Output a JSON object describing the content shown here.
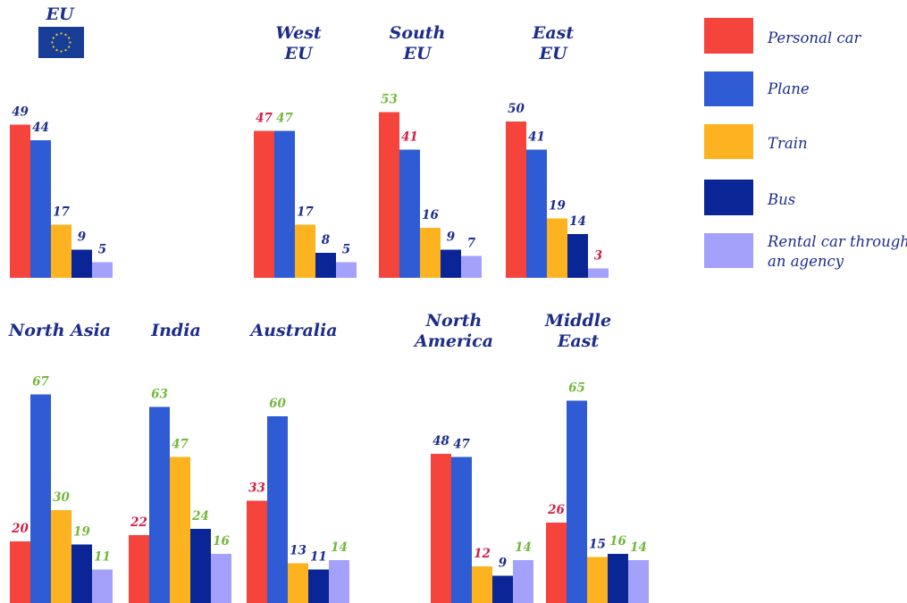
{
  "chart_data": {
    "type": "bar",
    "categories": [
      "Personal car",
      "Plane",
      "Train",
      "Bus",
      "Rental car through an agency"
    ],
    "legend": {
      "placement": "right",
      "items": [
        {
          "lines": [
            "Personal car"
          ],
          "color": "#f5443c"
        },
        {
          "lines": [
            "Plane"
          ],
          "color": "#2f5bd4"
        },
        {
          "lines": [
            "Train"
          ],
          "color": "#fcb31f"
        },
        {
          "lines": [
            "Bus"
          ],
          "color": "#0a2596"
        },
        {
          "lines": [
            "Rental car through",
            "an agency"
          ],
          "color": "#a3a1fa"
        }
      ]
    },
    "colors": {
      "title": "#1c2c8c",
      "label_default": "#1c2c8c",
      "label_green": "#72b83c",
      "label_red": "#d01e46",
      "eu_flag_blue": "#173d96",
      "eu_flag_stars": "#ffd21e"
    },
    "panels": [
      {
        "title": [
          "EU"
        ],
        "values": [
          49,
          44,
          17,
          9,
          5
        ],
        "label_colors": [
          "default",
          "default",
          "default",
          "default",
          "default"
        ]
      },
      {
        "title": [
          "West",
          "EU"
        ],
        "values": [
          47,
          47,
          17,
          8,
          5
        ],
        "label_colors": [
          "red",
          "green",
          "default",
          "default",
          "default"
        ]
      },
      {
        "title": [
          "South",
          "EU"
        ],
        "values": [
          53,
          41,
          16,
          9,
          7
        ],
        "label_colors": [
          "green",
          "red",
          "default",
          "default",
          "default"
        ]
      },
      {
        "title": [
          "East",
          "EU"
        ],
        "values": [
          50,
          41,
          19,
          14,
          3
        ],
        "label_colors": [
          "default",
          "default",
          "default",
          "default",
          "red"
        ]
      },
      {
        "title": [
          "North Asia"
        ],
        "values": [
          20,
          67,
          30,
          19,
          11
        ],
        "label_colors": [
          "red",
          "green",
          "green",
          "green",
          "green"
        ]
      },
      {
        "title": [
          "India"
        ],
        "values": [
          22,
          63,
          47,
          24,
          16
        ],
        "label_colors": [
          "red",
          "green",
          "green",
          "green",
          "green"
        ]
      },
      {
        "title": [
          "Australia"
        ],
        "values": [
          33,
          60,
          13,
          11,
          14
        ],
        "label_colors": [
          "red",
          "green",
          "default",
          "default",
          "green"
        ]
      },
      {
        "title": [
          "North",
          "America"
        ],
        "values": [
          48,
          47,
          12,
          9,
          14
        ],
        "label_colors": [
          "default",
          "default",
          "red",
          "default",
          "green"
        ]
      },
      {
        "title": [
          "Middle",
          "East"
        ],
        "values": [
          26,
          65,
          15,
          16,
          14
        ],
        "label_colors": [
          "red",
          "green",
          "default",
          "green",
          "green"
        ]
      }
    ]
  }
}
